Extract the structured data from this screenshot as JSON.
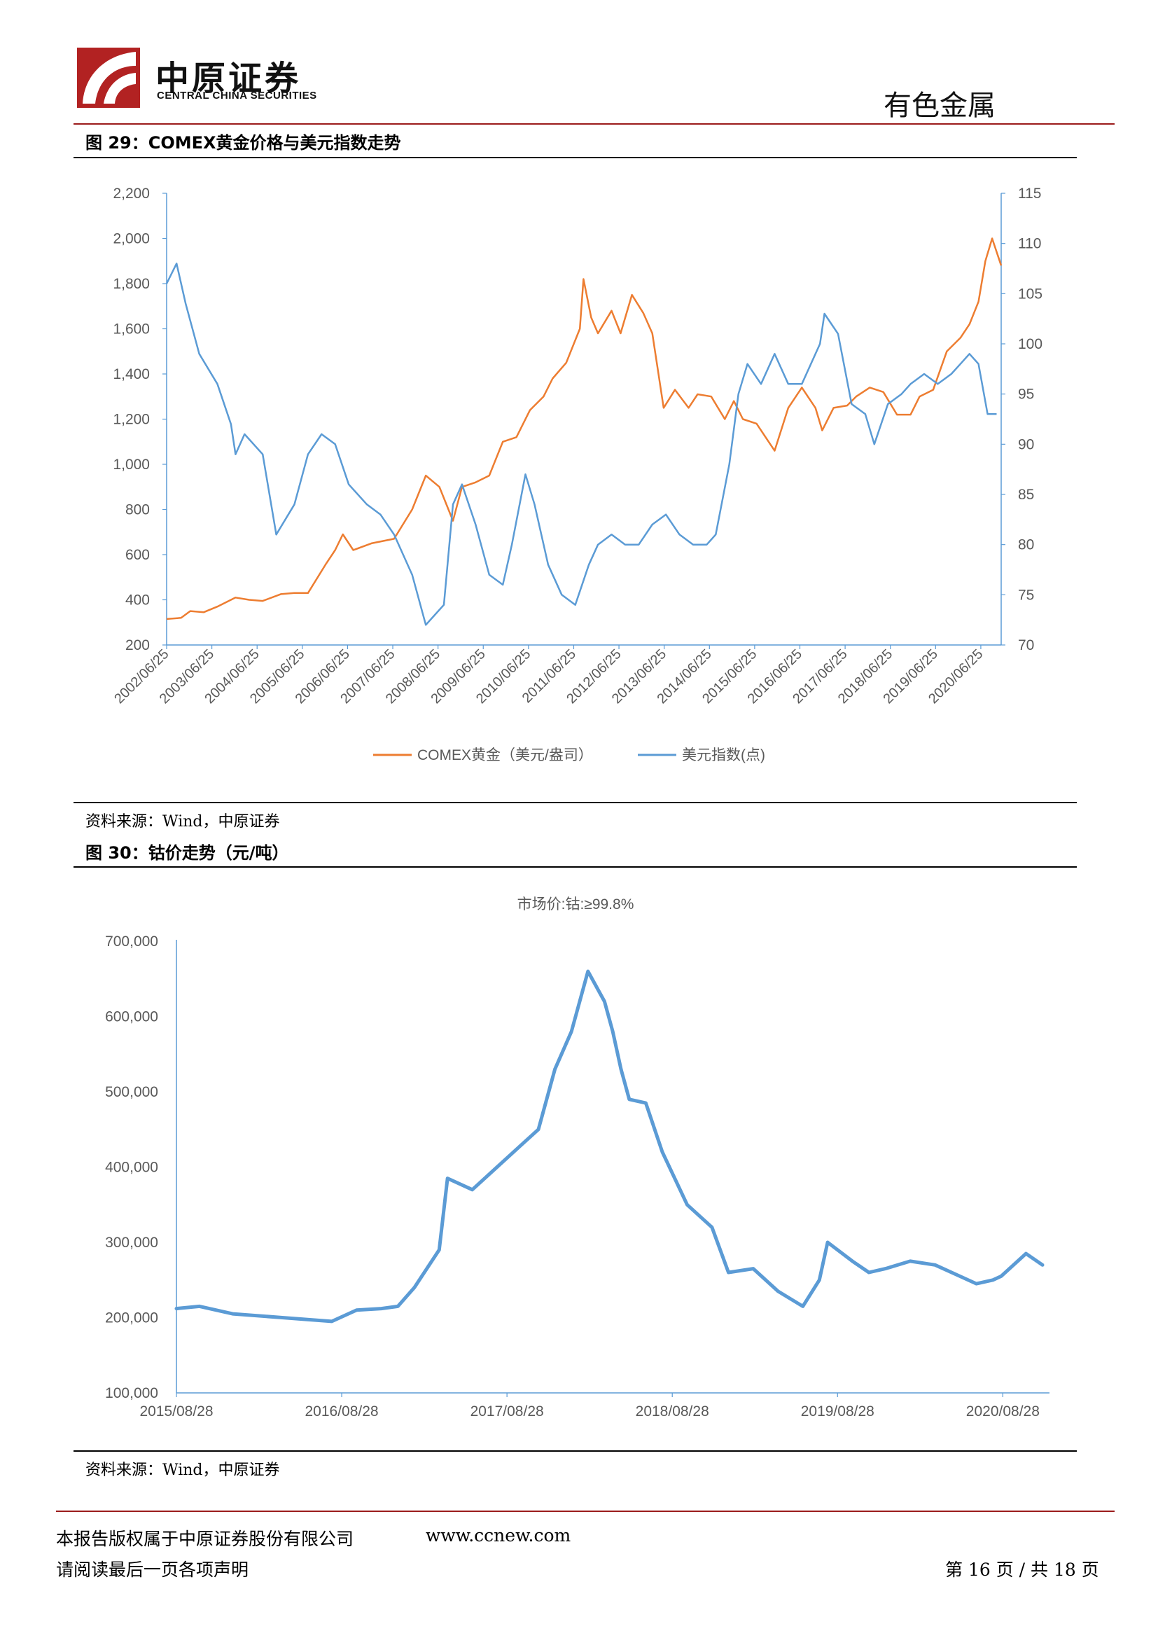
{
  "header": {
    "company_cn": "中原证券",
    "company_en": "CENTRAL CHINA SECURITIES",
    "industry": "有色金属",
    "colors": {
      "brand_red": "#9b1b1b"
    }
  },
  "figure29": {
    "title": "图 29：COMEX黄金价格与美元指数走势",
    "source": "资料来源：Wind，中原证券",
    "chart_data": {
      "type": "line",
      "x_tick_labels": [
        "2002/06/25",
        "2003/06/25",
        "2004/06/25",
        "2005/06/25",
        "2006/06/25",
        "2007/06/25",
        "2008/06/25",
        "2009/06/25",
        "2010/06/25",
        "2011/06/25",
        "2012/06/25",
        "2013/06/25",
        "2014/06/25",
        "2015/06/25",
        "2016/06/25",
        "2017/06/25",
        "2018/06/25",
        "2019/06/25",
        "2020/06/25"
      ],
      "left_ylim": [
        200,
        2200
      ],
      "left_ticks": [
        "2,200",
        "2,000",
        "1,800",
        "1,600",
        "1,400",
        "1,200",
        "1,000",
        "800",
        "600",
        "400",
        "200"
      ],
      "right_ylim": [
        70,
        115
      ],
      "right_ticks": [
        "115",
        "110",
        "105",
        "100",
        "95",
        "90",
        "85",
        "80",
        "75",
        "70"
      ],
      "legend_position": "bottom",
      "series": [
        {
          "name": "COMEX黄金（美元/盎司）",
          "axis": "left",
          "color": "#ed7d31",
          "x": [
            2002.48,
            2002.8,
            2003.0,
            2003.3,
            2003.6,
            2004.0,
            2004.3,
            2004.6,
            2005.0,
            2005.3,
            2005.6,
            2006.0,
            2006.2,
            2006.37,
            2006.6,
            2007.0,
            2007.5,
            2007.9,
            2008.2,
            2008.5,
            2008.8,
            2009.0,
            2009.3,
            2009.6,
            2009.9,
            2010.2,
            2010.5,
            2010.8,
            2011.0,
            2011.3,
            2011.6,
            2011.68,
            2011.85,
            2012.0,
            2012.3,
            2012.5,
            2012.75,
            2013.0,
            2013.2,
            2013.45,
            2013.7,
            2014.0,
            2014.2,
            2014.5,
            2014.8,
            2015.0,
            2015.2,
            2015.5,
            2015.9,
            2016.2,
            2016.5,
            2016.8,
            2016.95,
            2017.2,
            2017.5,
            2017.7,
            2018.0,
            2018.3,
            2018.6,
            2018.9,
            2019.1,
            2019.4,
            2019.7,
            2020.0,
            2020.2,
            2020.4,
            2020.55,
            2020.7,
            2020.9
          ],
          "y": [
            315,
            320,
            350,
            345,
            370,
            410,
            400,
            395,
            425,
            430,
            430,
            560,
            620,
            690,
            620,
            650,
            670,
            800,
            950,
            900,
            750,
            900,
            920,
            950,
            1100,
            1120,
            1240,
            1300,
            1380,
            1450,
            1600,
            1820,
            1650,
            1580,
            1680,
            1580,
            1750,
            1670,
            1580,
            1250,
            1330,
            1250,
            1310,
            1300,
            1200,
            1280,
            1200,
            1180,
            1060,
            1250,
            1340,
            1250,
            1150,
            1250,
            1260,
            1300,
            1340,
            1320,
            1220,
            1220,
            1300,
            1330,
            1500,
            1560,
            1620,
            1720,
            1900,
            2000,
            1880
          ]
        },
        {
          "name": "美元指数(点)",
          "axis": "right",
          "color": "#5b9bd5",
          "x": [
            2002.48,
            2002.7,
            2002.9,
            2003.2,
            2003.6,
            2003.9,
            2004.0,
            2004.2,
            2004.6,
            2004.9,
            2005.3,
            2005.6,
            2005.9,
            2006.2,
            2006.5,
            2006.9,
            2007.2,
            2007.5,
            2007.9,
            2008.2,
            2008.4,
            2008.6,
            2008.8,
            2009.0,
            2009.3,
            2009.6,
            2009.9,
            2010.1,
            2010.4,
            2010.6,
            2010.9,
            2011.2,
            2011.5,
            2011.8,
            2012.0,
            2012.3,
            2012.6,
            2012.9,
            2013.2,
            2013.5,
            2013.8,
            2014.1,
            2014.4,
            2014.6,
            2014.9,
            2015.1,
            2015.3,
            2015.6,
            2015.9,
            2016.2,
            2016.5,
            2016.9,
            2017.0,
            2017.3,
            2017.6,
            2017.9,
            2018.1,
            2018.4,
            2018.7,
            2018.9,
            2019.2,
            2019.5,
            2019.8,
            2020.0,
            2020.2,
            2020.4,
            2020.6,
            2020.8
          ],
          "y": [
            106,
            108,
            104,
            99,
            96,
            92,
            89,
            91,
            89,
            81,
            84,
            89,
            91,
            90,
            86,
            84,
            83,
            81,
            77,
            72,
            73,
            74,
            84,
            86,
            82,
            77,
            76,
            80,
            87,
            84,
            78,
            75,
            74,
            78,
            80,
            81,
            80,
            80,
            82,
            83,
            81,
            80,
            80,
            81,
            88,
            95,
            98,
            96,
            99,
            96,
            96,
            100,
            103,
            101,
            94,
            93,
            90,
            94,
            95,
            96,
            97,
            96,
            97,
            98,
            99,
            98,
            93,
            93
          ]
        }
      ]
    }
  },
  "figure30": {
    "title": "图 30：钴价走势（元/吨）",
    "source": "资料来源：Wind，中原证券",
    "chart_data": {
      "type": "line",
      "title": "市场价:钴:≥99.8%",
      "x_tick_labels": [
        "2015/08/28",
        "2016/08/28",
        "2017/08/28",
        "2018/08/28",
        "2019/08/28",
        "2020/08/28"
      ],
      "ylim": [
        100000,
        700000
      ],
      "y_ticks": [
        "700,000",
        "600,000",
        "500,000",
        "400,000",
        "300,000",
        "200,000",
        "100,000"
      ],
      "series": [
        {
          "color": "#5b9bd5",
          "x": [
            2015.66,
            2015.8,
            2016.0,
            2016.3,
            2016.6,
            2016.75,
            2016.9,
            2017.0,
            2017.1,
            2017.25,
            2017.3,
            2017.45,
            2017.6,
            2017.75,
            2017.85,
            2017.95,
            2018.05,
            2018.15,
            2018.25,
            2018.3,
            2018.35,
            2018.4,
            2018.5,
            2018.6,
            2018.75,
            2018.9,
            2019.0,
            2019.15,
            2019.3,
            2019.45,
            2019.55,
            2019.6,
            2019.75,
            2019.85,
            2019.95,
            2020.1,
            2020.25,
            2020.4,
            2020.5,
            2020.6,
            2020.65,
            2020.8,
            2020.9
          ],
          "y": [
            212000,
            215000,
            205000,
            200000,
            195000,
            210000,
            212000,
            215000,
            240000,
            290000,
            385000,
            370000,
            400000,
            430000,
            450000,
            530000,
            580000,
            660000,
            620000,
            580000,
            530000,
            490000,
            485000,
            420000,
            350000,
            320000,
            260000,
            265000,
            235000,
            215000,
            250000,
            300000,
            275000,
            260000,
            265000,
            275000,
            270000,
            255000,
            245000,
            250000,
            255000,
            285000,
            270000
          ]
        }
      ]
    }
  },
  "footer": {
    "copyright": "本报告版权属于中原证券股份有限公司",
    "website": "www.ccnew.com",
    "notice": "请阅读最后一页各项声明",
    "page_info": "第 16 页 / 共 18 页"
  }
}
